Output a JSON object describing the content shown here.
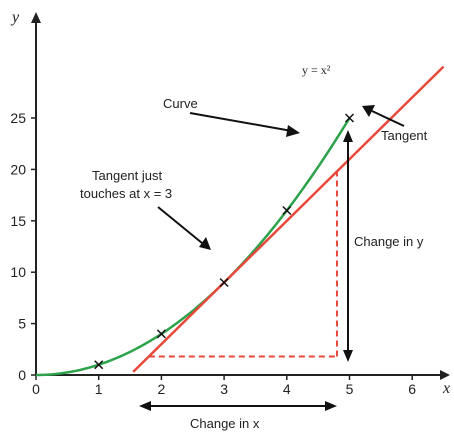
{
  "chart_data": {
    "type": "line",
    "title": "",
    "xlabel": "x",
    "ylabel": "y",
    "xlim": [
      0,
      7
    ],
    "ylim": [
      0,
      27
    ],
    "x_ticks": [
      0,
      1,
      2,
      3,
      4,
      5,
      6
    ],
    "y_ticks": [
      0,
      5,
      10,
      15,
      20,
      25
    ],
    "grid": false,
    "curve": {
      "equation": "y = x²",
      "label": "Curve",
      "x_range": [
        0,
        5
      ],
      "color": "#2ca24b"
    },
    "marked_points": [
      {
        "x": 1,
        "y": 1
      },
      {
        "x": 2,
        "y": 4
      },
      {
        "x": 3,
        "y": 9
      },
      {
        "x": 4,
        "y": 16
      },
      {
        "x": 5,
        "y": 25
      }
    ],
    "tangent": {
      "label": "Tangent",
      "touch_x": 3,
      "slope": 6,
      "intercept": -9,
      "x_range": [
        1.55,
        6.5
      ],
      "color": "#e8483a"
    },
    "triangle": {
      "x1": 1.8,
      "x2": 4.8,
      "color": "#e8483a"
    },
    "annotations": {
      "curve_label": "Curve",
      "equation_label": "y = x²",
      "tangent_label": "Tangent",
      "touch_line1": "Tangent just",
      "touch_line2": "touches at x = 3",
      "change_y": "Change in y",
      "change_x": "Change in x"
    }
  }
}
